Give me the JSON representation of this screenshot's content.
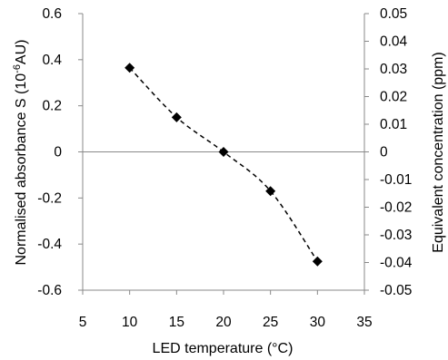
{
  "chart_data": {
    "type": "scatter",
    "title": "",
    "xlabel": "LED temperature (°C)",
    "ylabel_prefix": "Normalised absorbance S (10",
    "ylabel_exp": "-6",
    "ylabel_suffix": "AU)",
    "y2label": "Equivalent concentration (ppm)",
    "xlim": [
      5,
      35
    ],
    "ylim": [
      -0.6,
      0.6
    ],
    "y2lim": [
      -0.05,
      0.05
    ],
    "x_ticks": [
      "5",
      "10",
      "15",
      "20",
      "25",
      "30",
      "35"
    ],
    "y_ticks": [
      "0.6",
      "0.4",
      "0.2",
      "0",
      "-0.2",
      "-0.4",
      "-0.6"
    ],
    "y2_ticks": [
      "0.05",
      "0.04",
      "0.03",
      "0.02",
      "0.01",
      "0",
      "-0.01",
      "-0.02",
      "-0.03",
      "-0.04",
      "-0.05"
    ],
    "grid": false,
    "trendline": "dashed",
    "marker": "diamond",
    "marker_color": "#000000",
    "points": [
      {
        "x": 10,
        "y": 0.365
      },
      {
        "x": 15,
        "y": 0.15
      },
      {
        "x": 20,
        "y": 0.0
      },
      {
        "x": 25,
        "y": -0.17
      },
      {
        "x": 30,
        "y": -0.475
      }
    ]
  }
}
